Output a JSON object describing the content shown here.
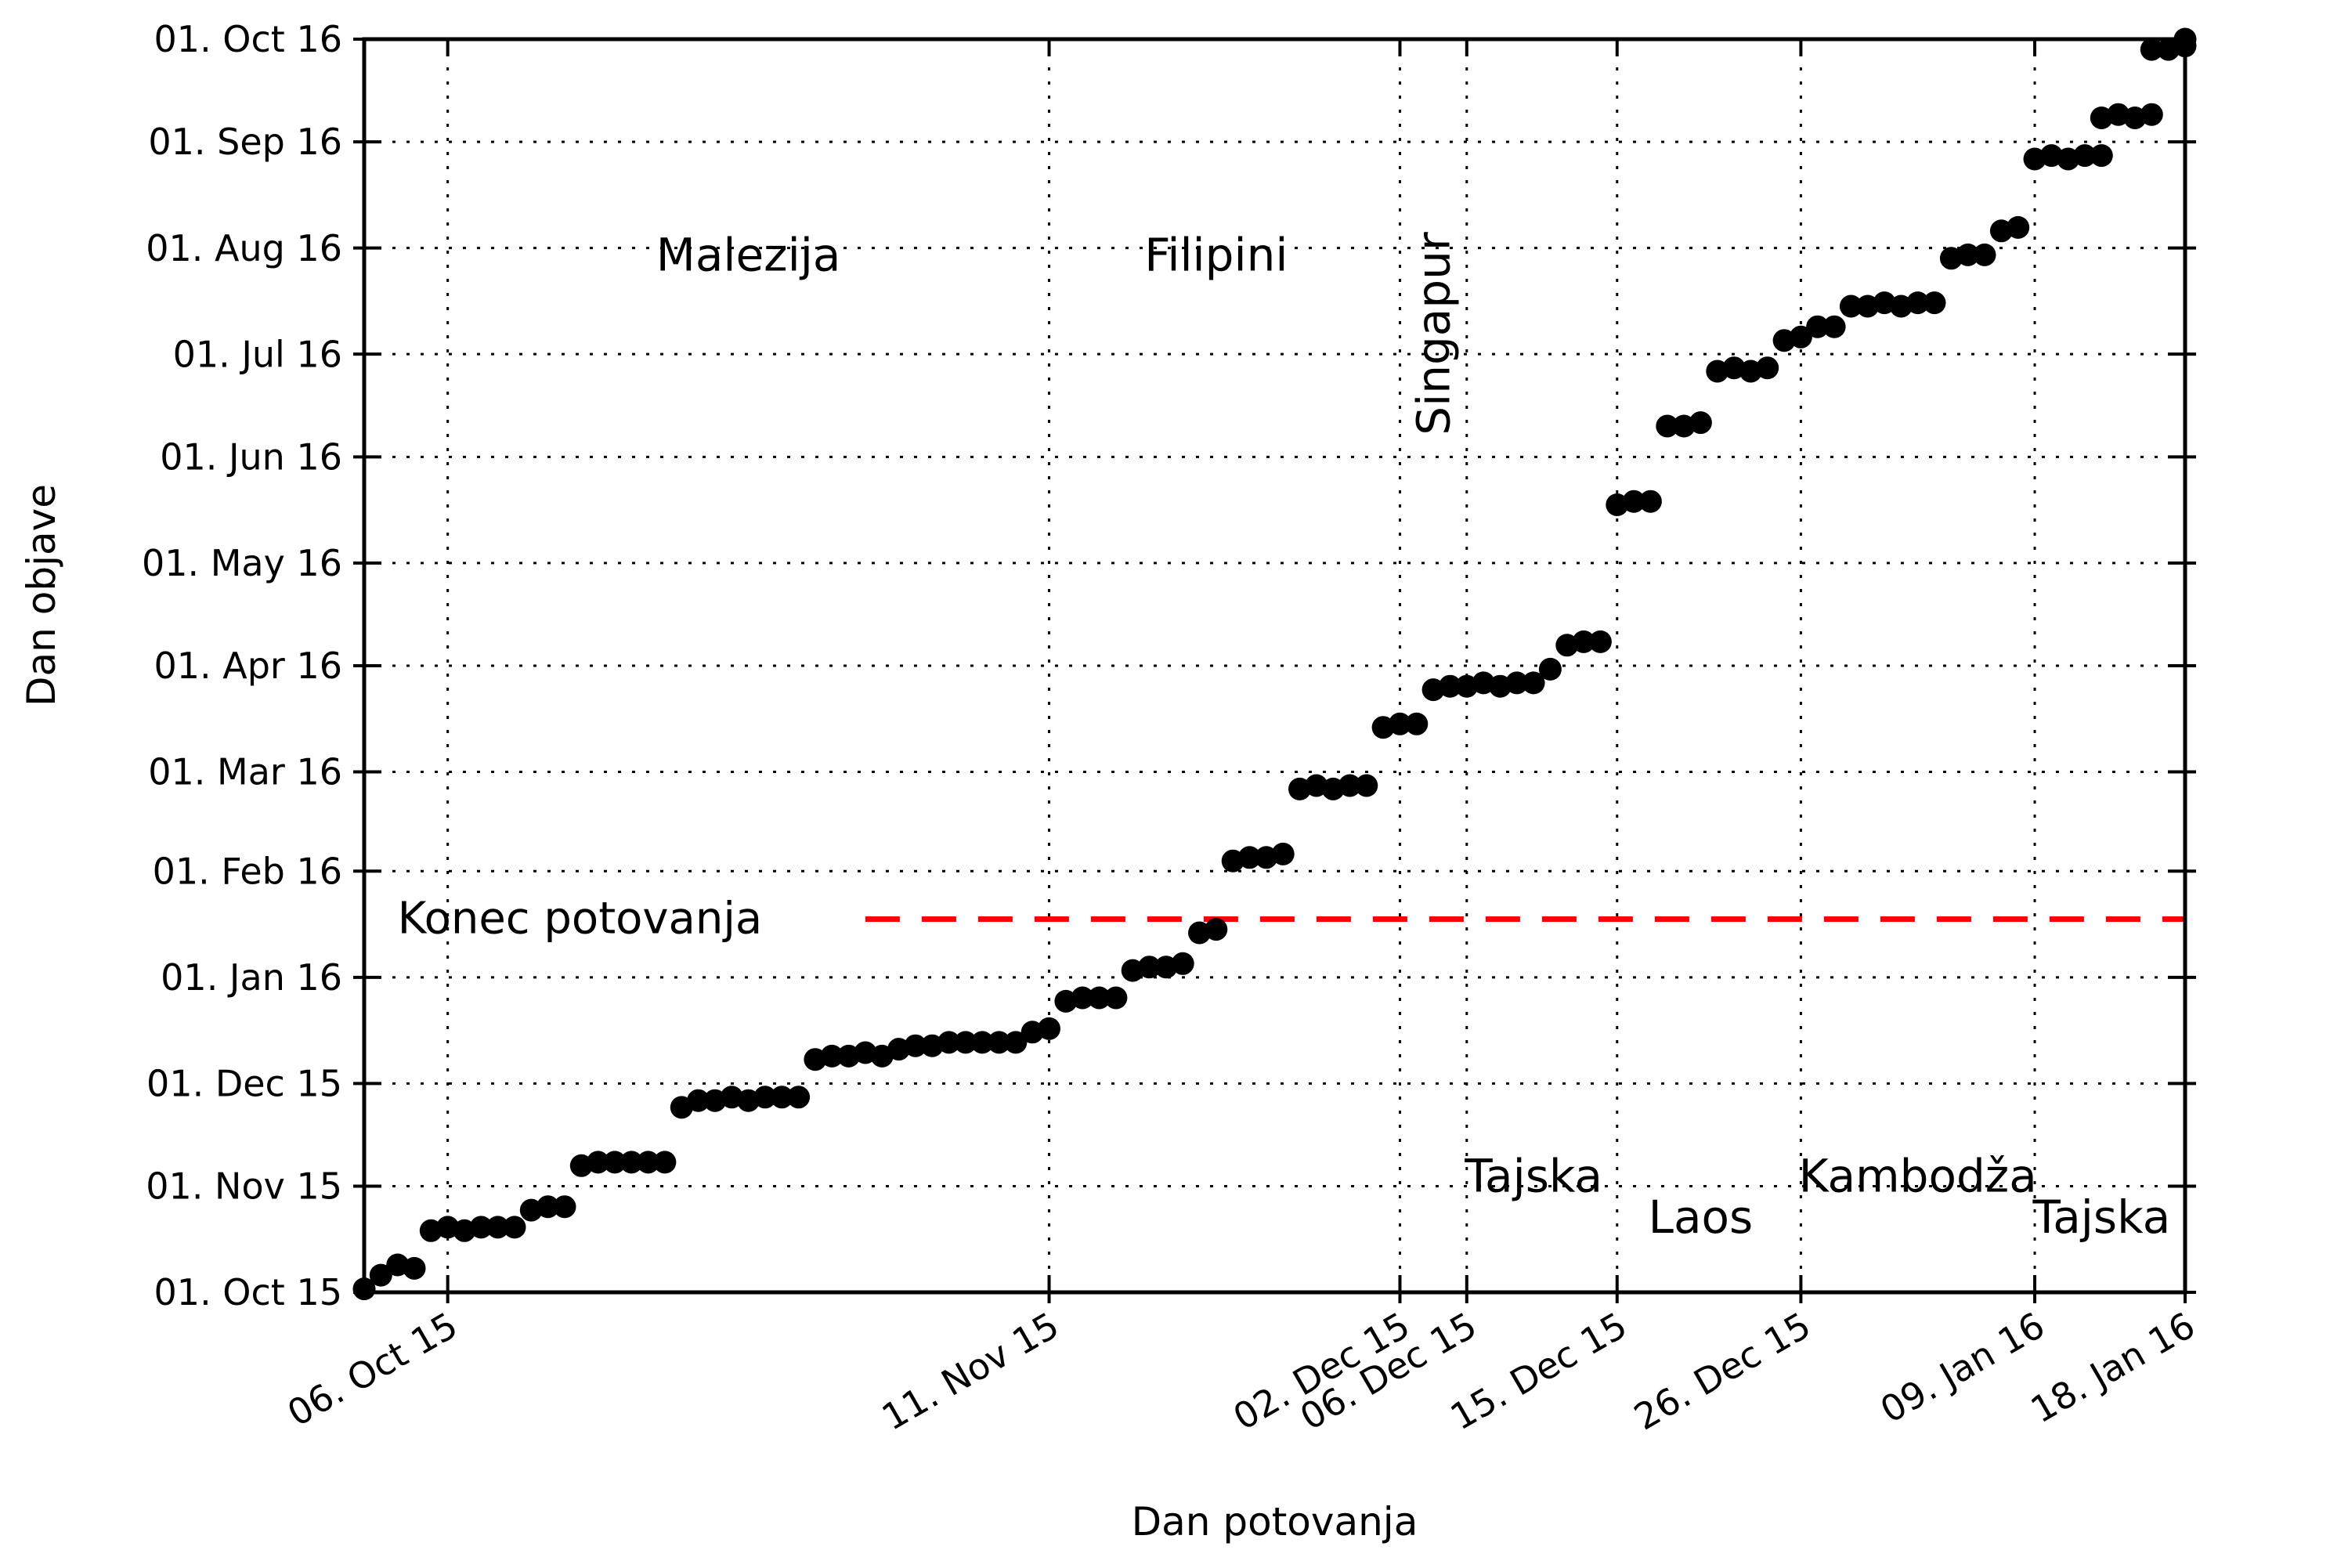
{
  "chart_data": {
    "type": "scatter",
    "title": "",
    "xlabel": "Dan potovanja",
    "ylabel": "Dan objave",
    "x_range": [
      "2015-10-01",
      "2016-01-18"
    ],
    "y_range": [
      "2015-10-01",
      "2016-10-01"
    ],
    "grid": true,
    "background_color": "#ffffff",
    "marker_color": "#000000",
    "annotation_color": "#0000ff",
    "x_ticks": [
      {
        "date": "2015-10-06",
        "label": "06. Oct 15"
      },
      {
        "date": "2015-11-11",
        "label": "11. Nov 15"
      },
      {
        "date": "2015-12-02",
        "label": "02. Dec 15"
      },
      {
        "date": "2015-12-06",
        "label": "06. Dec 15"
      },
      {
        "date": "2015-12-15",
        "label": "15. Dec 15"
      },
      {
        "date": "2015-12-26",
        "label": "26. Dec 15"
      },
      {
        "date": "2016-01-09",
        "label": "09. Jan 16"
      },
      {
        "date": "2016-01-18",
        "label": "18. Jan 16"
      }
    ],
    "y_ticks": [
      {
        "date": "2015-10-01",
        "label": "01. Oct 15"
      },
      {
        "date": "2015-11-01",
        "label": "01. Nov 15"
      },
      {
        "date": "2015-12-01",
        "label": "01. Dec 15"
      },
      {
        "date": "2016-01-01",
        "label": "01. Jan 16"
      },
      {
        "date": "2016-02-01",
        "label": "01. Feb 16"
      },
      {
        "date": "2016-03-01",
        "label": "01. Mar 16"
      },
      {
        "date": "2016-04-01",
        "label": "01. Apr 16"
      },
      {
        "date": "2016-05-01",
        "label": "01. May 16"
      },
      {
        "date": "2016-06-01",
        "label": "01. Jun 16"
      },
      {
        "date": "2016-07-01",
        "label": "01. Jul 16"
      },
      {
        "date": "2016-08-01",
        "label": "01. Aug 16"
      },
      {
        "date": "2016-09-01",
        "label": "01. Sep 16"
      },
      {
        "date": "2016-10-01",
        "label": "01. Oct 16"
      }
    ],
    "end_line": {
      "label": "Konec potovanja",
      "date": "2016-01-18",
      "color": "#ff0000",
      "label_x": "2015-10-03",
      "dash_start_x": "2015-10-31"
    },
    "annotations": [
      {
        "label": "Malezija",
        "x": "2015-10-24",
        "y": "2016-07-30",
        "rotate": 0
      },
      {
        "label": "Filipini",
        "x": "2015-11-21",
        "y": "2016-07-30",
        "rotate": 0
      },
      {
        "label": "Singapur",
        "x": "2015-12-04",
        "y": "2016-07-07",
        "rotate": -90
      },
      {
        "label": "Tajska",
        "x": "2015-12-10",
        "y": "2015-11-04",
        "rotate": 0
      },
      {
        "label": "Laos",
        "x": "2015-12-20",
        "y": "2015-10-23",
        "rotate": 0
      },
      {
        "label": "Kambodža",
        "x": "2016-01-02",
        "y": "2015-11-04",
        "rotate": 0
      },
      {
        "label": "Tajska",
        "x": "2016-01-13",
        "y": "2015-10-23",
        "rotate": 0
      }
    ],
    "points": [
      [
        "2015-10-01",
        "2015-10-02"
      ],
      [
        "2015-10-02",
        "2015-10-06"
      ],
      [
        "2015-10-03",
        "2015-10-09"
      ],
      [
        "2015-10-04",
        "2015-10-08"
      ],
      [
        "2015-10-05",
        "2015-10-19"
      ],
      [
        "2015-10-06",
        "2015-10-20"
      ],
      [
        "2015-10-07",
        "2015-10-19"
      ],
      [
        "2015-10-08",
        "2015-10-20"
      ],
      [
        "2015-10-09",
        "2015-10-20"
      ],
      [
        "2015-10-10",
        "2015-10-20"
      ],
      [
        "2015-10-11",
        "2015-10-25"
      ],
      [
        "2015-10-12",
        "2015-10-26"
      ],
      [
        "2015-10-13",
        "2015-10-26"
      ],
      [
        "2015-10-14",
        "2015-11-07"
      ],
      [
        "2015-10-15",
        "2015-11-08"
      ],
      [
        "2015-10-16",
        "2015-11-08"
      ],
      [
        "2015-10-17",
        "2015-11-08"
      ],
      [
        "2015-10-18",
        "2015-11-08"
      ],
      [
        "2015-10-19",
        "2015-11-08"
      ],
      [
        "2015-10-20",
        "2015-11-24"
      ],
      [
        "2015-10-21",
        "2015-11-26"
      ],
      [
        "2015-10-22",
        "2015-11-26"
      ],
      [
        "2015-10-23",
        "2015-11-27"
      ],
      [
        "2015-10-24",
        "2015-11-26"
      ],
      [
        "2015-10-25",
        "2015-11-27"
      ],
      [
        "2015-10-26",
        "2015-11-27"
      ],
      [
        "2015-10-27",
        "2015-11-27"
      ],
      [
        "2015-10-28",
        "2015-12-08"
      ],
      [
        "2015-10-29",
        "2015-12-09"
      ],
      [
        "2015-10-30",
        "2015-12-09"
      ],
      [
        "2015-10-31",
        "2015-12-10"
      ],
      [
        "2015-11-01",
        "2015-12-09"
      ],
      [
        "2015-11-02",
        "2015-12-11"
      ],
      [
        "2015-11-03",
        "2015-12-12"
      ],
      [
        "2015-11-04",
        "2015-12-12"
      ],
      [
        "2015-11-05",
        "2015-12-13"
      ],
      [
        "2015-11-06",
        "2015-12-13"
      ],
      [
        "2015-11-07",
        "2015-12-13"
      ],
      [
        "2015-11-08",
        "2015-12-13"
      ],
      [
        "2015-11-09",
        "2015-12-13"
      ],
      [
        "2015-11-10",
        "2015-12-16"
      ],
      [
        "2015-11-11",
        "2015-12-17"
      ],
      [
        "2015-11-12",
        "2015-12-25"
      ],
      [
        "2015-11-13",
        "2015-12-26"
      ],
      [
        "2015-11-14",
        "2015-12-26"
      ],
      [
        "2015-11-15",
        "2015-12-26"
      ],
      [
        "2015-11-16",
        "2016-01-03"
      ],
      [
        "2015-11-17",
        "2016-01-04"
      ],
      [
        "2015-11-18",
        "2016-01-04"
      ],
      [
        "2015-11-19",
        "2016-01-05"
      ],
      [
        "2015-11-20",
        "2016-01-14"
      ],
      [
        "2015-11-21",
        "2016-01-15"
      ],
      [
        "2015-11-22",
        "2016-02-04"
      ],
      [
        "2015-11-23",
        "2016-02-05"
      ],
      [
        "2015-11-24",
        "2016-02-05"
      ],
      [
        "2015-11-25",
        "2016-02-06"
      ],
      [
        "2015-11-26",
        "2016-02-25"
      ],
      [
        "2015-11-27",
        "2016-02-26"
      ],
      [
        "2015-11-28",
        "2016-02-25"
      ],
      [
        "2015-11-29",
        "2016-02-26"
      ],
      [
        "2015-11-30",
        "2016-02-26"
      ],
      [
        "2015-12-01",
        "2016-03-14"
      ],
      [
        "2015-12-02",
        "2016-03-15"
      ],
      [
        "2015-12-03",
        "2016-03-15"
      ],
      [
        "2015-12-04",
        "2016-03-25"
      ],
      [
        "2015-12-05",
        "2016-03-26"
      ],
      [
        "2015-12-06",
        "2016-03-26"
      ],
      [
        "2015-12-07",
        "2016-03-27"
      ],
      [
        "2015-12-08",
        "2016-03-26"
      ],
      [
        "2015-12-09",
        "2016-03-27"
      ],
      [
        "2015-12-10",
        "2016-03-27"
      ],
      [
        "2015-12-11",
        "2016-03-31"
      ],
      [
        "2015-12-12",
        "2016-04-07"
      ],
      [
        "2015-12-13",
        "2016-04-08"
      ],
      [
        "2015-12-14",
        "2016-04-08"
      ],
      [
        "2015-12-15",
        "2016-05-18"
      ],
      [
        "2015-12-16",
        "2016-05-19"
      ],
      [
        "2015-12-17",
        "2016-05-19"
      ],
      [
        "2015-12-18",
        "2016-06-10"
      ],
      [
        "2015-12-19",
        "2016-06-10"
      ],
      [
        "2015-12-20",
        "2016-06-11"
      ],
      [
        "2015-12-21",
        "2016-06-26"
      ],
      [
        "2015-12-22",
        "2016-06-27"
      ],
      [
        "2015-12-23",
        "2016-06-26"
      ],
      [
        "2015-12-24",
        "2016-06-27"
      ],
      [
        "2015-12-25",
        "2016-07-05"
      ],
      [
        "2015-12-26",
        "2016-07-06"
      ],
      [
        "2015-12-27",
        "2016-07-09"
      ],
      [
        "2015-12-28",
        "2016-07-09"
      ],
      [
        "2015-12-29",
        "2016-07-15"
      ],
      [
        "2015-12-30",
        "2016-07-15"
      ],
      [
        "2015-12-31",
        "2016-07-16"
      ],
      [
        "2016-01-01",
        "2016-07-15"
      ],
      [
        "2016-01-02",
        "2016-07-16"
      ],
      [
        "2016-01-03",
        "2016-07-16"
      ],
      [
        "2016-01-04",
        "2016-07-29"
      ],
      [
        "2016-01-05",
        "2016-07-30"
      ],
      [
        "2016-01-06",
        "2016-07-30"
      ],
      [
        "2016-01-07",
        "2016-08-06"
      ],
      [
        "2016-01-08",
        "2016-08-07"
      ],
      [
        "2016-01-09",
        "2016-08-27"
      ],
      [
        "2016-01-10",
        "2016-08-28"
      ],
      [
        "2016-01-11",
        "2016-08-27"
      ],
      [
        "2016-01-12",
        "2016-08-28"
      ],
      [
        "2016-01-13",
        "2016-08-28"
      ],
      [
        "2016-01-13",
        "2016-09-08"
      ],
      [
        "2016-01-14",
        "2016-09-09"
      ],
      [
        "2016-01-15",
        "2016-09-08"
      ],
      [
        "2016-01-16",
        "2016-09-09"
      ],
      [
        "2016-01-16",
        "2016-09-28"
      ],
      [
        "2016-01-17",
        "2016-09-28"
      ],
      [
        "2016-01-18",
        "2016-09-29"
      ],
      [
        "2016-01-18",
        "2016-10-01"
      ]
    ]
  }
}
